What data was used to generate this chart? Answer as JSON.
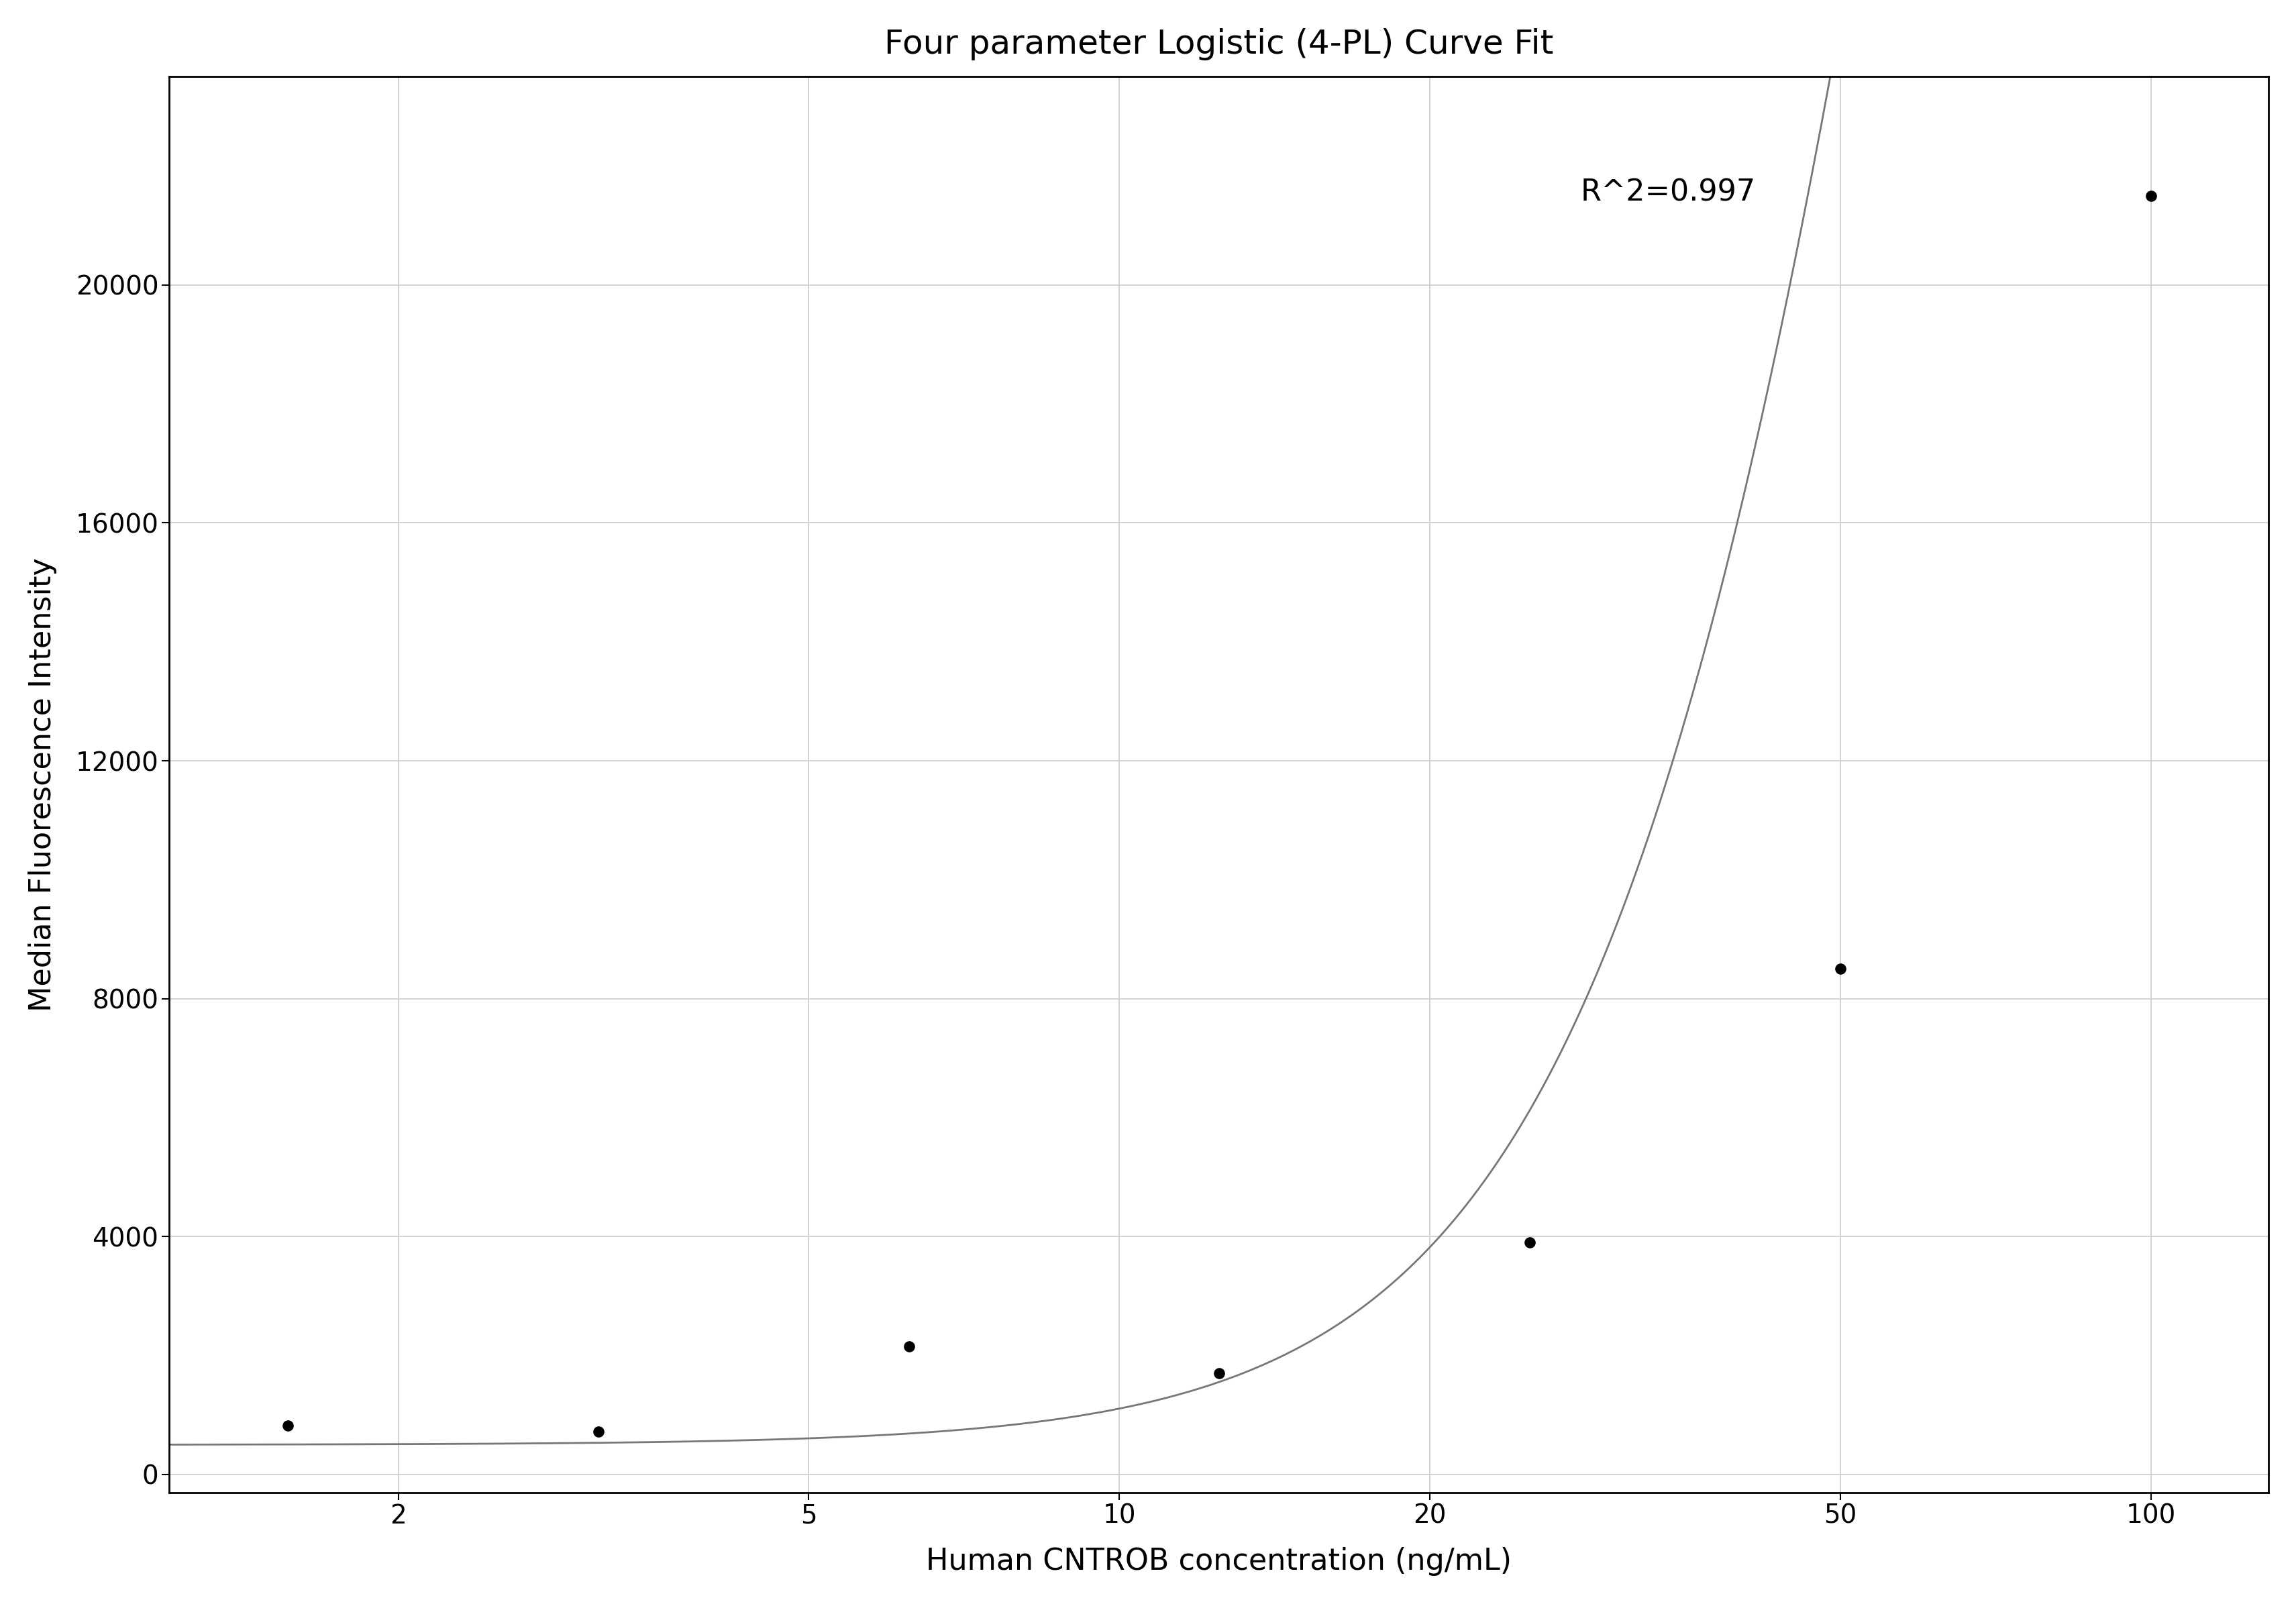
{
  "title": "Four parameter Logistic (4-PL) Curve Fit",
  "xlabel": "Human CNTROB concentration (ng/mL)",
  "ylabel": "Median Fluorescence Intensity",
  "r_squared_text": "R^2=0.997",
  "data_x": [
    1.5625,
    3.125,
    6.25,
    12.5,
    25.0,
    50.0,
    100.0
  ],
  "data_y": [
    820,
    720,
    2150,
    1700,
    3900,
    8500,
    21500
  ],
  "xscale": "log",
  "xlim": [
    1.2,
    130
  ],
  "xticks": [
    2,
    5,
    10,
    20,
    50,
    100
  ],
  "ylim": [
    -300,
    23500
  ],
  "yticks": [
    0,
    4000,
    8000,
    12000,
    16000,
    20000
  ],
  "curve_color": "#777777",
  "dot_color": "#000000",
  "dot_size": 120,
  "grid_color": "#cccccc",
  "background_color": "#ffffff",
  "title_fontsize": 36,
  "label_fontsize": 32,
  "tick_fontsize": 28,
  "annotation_fontsize": 32,
  "r2_x": 28,
  "r2_y": 21800
}
